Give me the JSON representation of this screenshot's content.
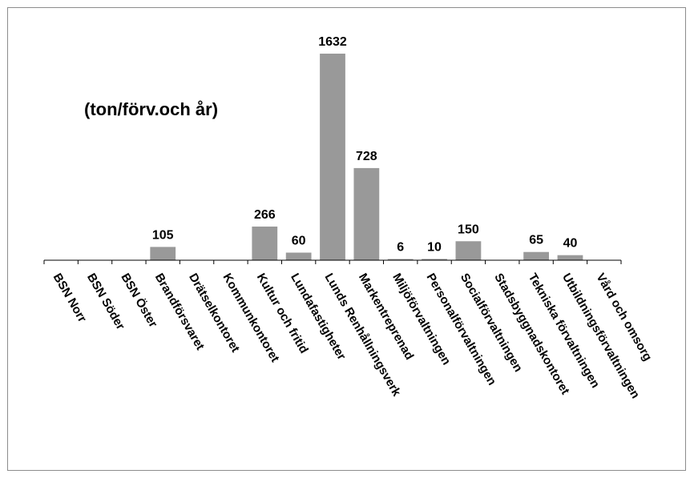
{
  "chart_data": {
    "type": "bar",
    "title": "(ton/förv.och år)",
    "xlabel": "",
    "ylabel": "",
    "ylim": [
      0,
      1632
    ],
    "grid": false,
    "legend": "none",
    "bar_color": "#999999",
    "categories": [
      "BSN Norr",
      "BSN Söder",
      "BSN Öster",
      "Brandförsvaret",
      "Drätselkontoret",
      "Kommunkontoret",
      "Kultur och fritid",
      "Lundafastigheter",
      "Lunds Renhållningsverk",
      "Markentreprenad",
      "Miljöförvaltningen",
      "Personalförvaltningen",
      "Socialförvaltningen",
      "Stadsbyggnadskontoret",
      "Tekniska förvaltningen",
      "Utbildningsförvaltningen",
      "Vård och omsorg"
    ],
    "values": [
      null,
      null,
      null,
      105,
      null,
      null,
      266,
      60,
      1632,
      728,
      6,
      10,
      150,
      null,
      65,
      40,
      null
    ],
    "data_labels": [
      "",
      "",
      "",
      "105",
      "",
      "",
      "266",
      "60",
      "1632",
      "728",
      "6",
      "10",
      "150",
      "",
      "65",
      "40",
      ""
    ]
  }
}
